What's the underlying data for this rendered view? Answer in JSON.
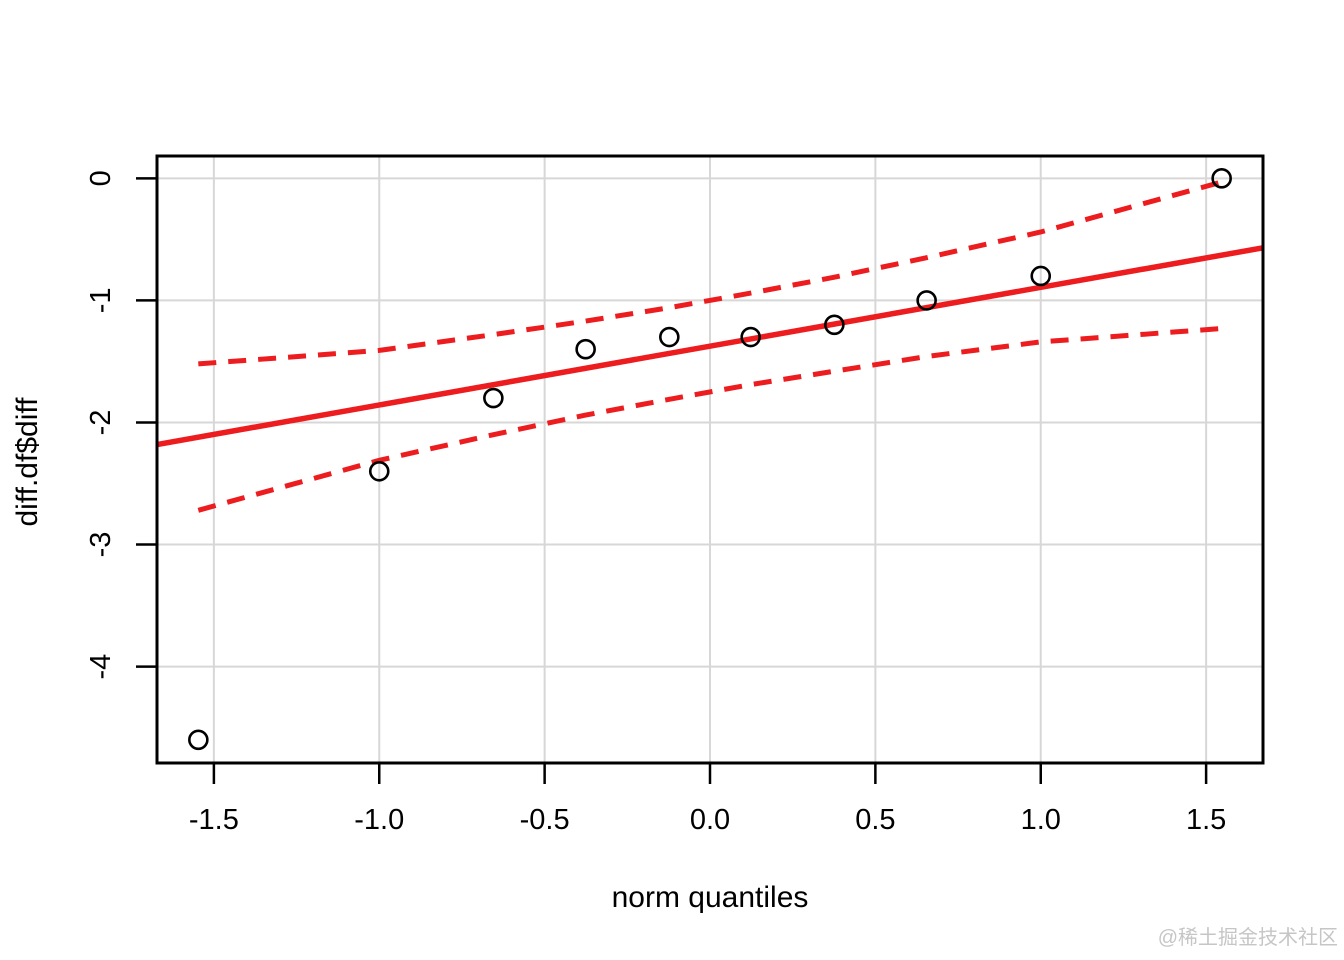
{
  "figure": {
    "watermark": "@稀土掘金技术社区"
  },
  "chart_data": {
    "type": "scatter",
    "subtype": "qq-plot-with-confidence-envelope",
    "title": "",
    "xlabel": "norm quantiles",
    "ylabel": "diff.df$diff",
    "xlim": [
      -1.672,
      1.672
    ],
    "ylim": [
      -4.79,
      0.183
    ],
    "grid": true,
    "x_ticks": [
      -1.5,
      -1.0,
      -0.5,
      0.0,
      0.5,
      1.0,
      1.5
    ],
    "x_tick_labels": [
      "-1.5",
      "-1.0",
      "-0.5",
      "0.0",
      "0.5",
      "1.0",
      "1.5"
    ],
    "y_ticks": [
      0,
      -1,
      -2,
      -3,
      -4
    ],
    "y_tick_labels": [
      "0",
      "-1",
      "-2",
      "-3",
      "-4"
    ],
    "points": {
      "x": [
        -1.547,
        -1.0,
        -0.655,
        -0.376,
        -0.123,
        0.123,
        0.376,
        0.655,
        1.0,
        1.547
      ],
      "y": [
        -4.6,
        -2.4,
        -1.8,
        -1.4,
        -1.3,
        -1.3,
        -1.2,
        -1.0,
        -0.8,
        0.0
      ]
    },
    "reference_line": {
      "slope": 0.482,
      "intercept": -1.375,
      "style": "solid"
    },
    "envelope": {
      "x": [
        -1.547,
        -1.0,
        -0.655,
        -0.376,
        -0.123,
        0.123,
        0.376,
        0.655,
        1.0,
        1.547
      ],
      "upper": [
        -1.52,
        -1.41,
        -1.28,
        -1.17,
        -1.06,
        -0.94,
        -0.81,
        -0.65,
        -0.44,
        -0.03
      ],
      "lower": [
        -2.72,
        -2.31,
        -2.1,
        -1.94,
        -1.81,
        -1.69,
        -1.58,
        -1.46,
        -1.34,
        -1.23
      ],
      "style": "dashed"
    },
    "colors": {
      "line": "#ec1c1f",
      "points": "#000000",
      "grid": "#d7d7d7",
      "axis": "#000000",
      "background": "#ffffff",
      "watermark": "#c6c6c6"
    },
    "legend": null
  }
}
